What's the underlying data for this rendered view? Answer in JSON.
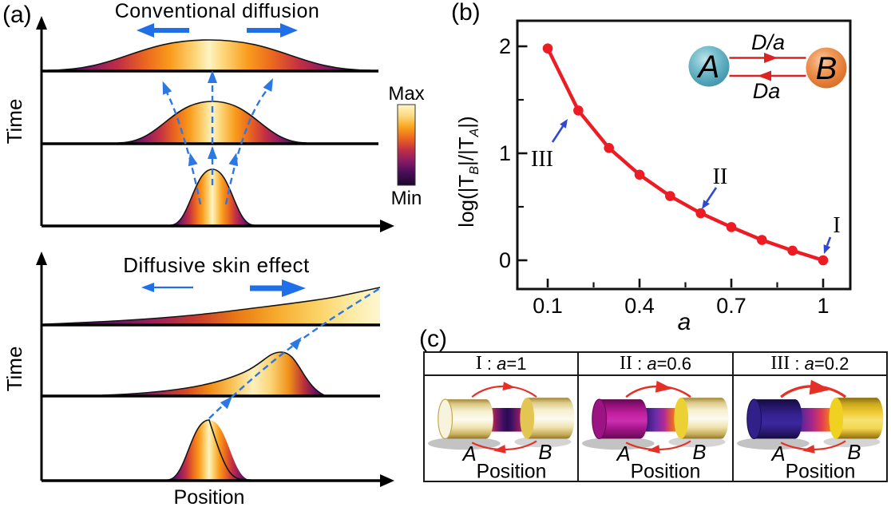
{
  "panel_a": {
    "label": "(a)",
    "top": {
      "title": "Conventional diffusion",
      "y_axis_label": "Time"
    },
    "bottom": {
      "title": "Diffusive skin effect",
      "y_axis_label": "Time",
      "x_axis_label": "Position"
    },
    "colorbar": {
      "max_label": "Max",
      "min_label": "Min"
    }
  },
  "panel_b": {
    "label": "(b)",
    "x_axis_label": "a",
    "y_axis_label": {
      "p0": "log(|T",
      "sub0": "B",
      "p1": "|/|T",
      "sub1": "A",
      "p2": "|)"
    },
    "inset": {
      "node_a": "A",
      "node_b": "B",
      "rate_top": "D/a",
      "rate_bottom": "Da"
    }
  },
  "panel_c": {
    "label": "(c)",
    "cells": [
      {
        "roman": "I",
        "sep": " : ",
        "param_var": "a",
        "param_value": "=1",
        "label_left": "A",
        "label_right": "B",
        "x_axis_label": "Position"
      },
      {
        "roman": "II",
        "sep": " : ",
        "param_var": "a",
        "param_value": "=0.6",
        "label_left": "A",
        "label_right": "B",
        "x_axis_label": "Position"
      },
      {
        "roman": "III",
        "sep": " : ",
        "param_var": "a",
        "param_value": "=0.2",
        "label_left": "A",
        "label_right": "B",
        "x_axis_label": "Position"
      }
    ]
  },
  "chart_data": {
    "type": "line",
    "x": [
      0.1,
      0.2,
      0.3,
      0.4,
      0.5,
      0.6,
      0.7,
      0.8,
      0.9,
      1.0
    ],
    "y": [
      1.98,
      1.4,
      1.05,
      0.8,
      0.6,
      0.44,
      0.31,
      0.19,
      0.09,
      0.0
    ],
    "series": [
      {
        "name": "log(|T_B|/|T_A|)",
        "color": "#ed1c24",
        "marker": "circle"
      }
    ],
    "title": "",
    "xlabel": "a",
    "ylabel": "log(|T_B|/|T_A|)",
    "xlim": [
      0.0,
      1.09
    ],
    "ylim": [
      -0.27,
      2.24
    ],
    "xticks": [
      "0.1",
      "0.4",
      "0.7",
      "1"
    ],
    "xtick_values": [
      0.1,
      0.4,
      0.7,
      1.0
    ],
    "xminor_values": [
      0.25,
      0.55,
      0.85
    ],
    "yticks": [
      "0",
      "1",
      "2"
    ],
    "ytick_values": [
      0,
      1,
      2
    ],
    "yminor_values": [
      0.5,
      1.5
    ],
    "grid": false,
    "legend": "none",
    "annotation_color": "#2f49d3",
    "annotations": [
      {
        "label": "I",
        "x": 1.0,
        "y": 0.0
      },
      {
        "label": "II",
        "x": 0.6,
        "y": 0.44
      },
      {
        "label": "III",
        "x": 0.2,
        "y": 1.4
      }
    ]
  }
}
